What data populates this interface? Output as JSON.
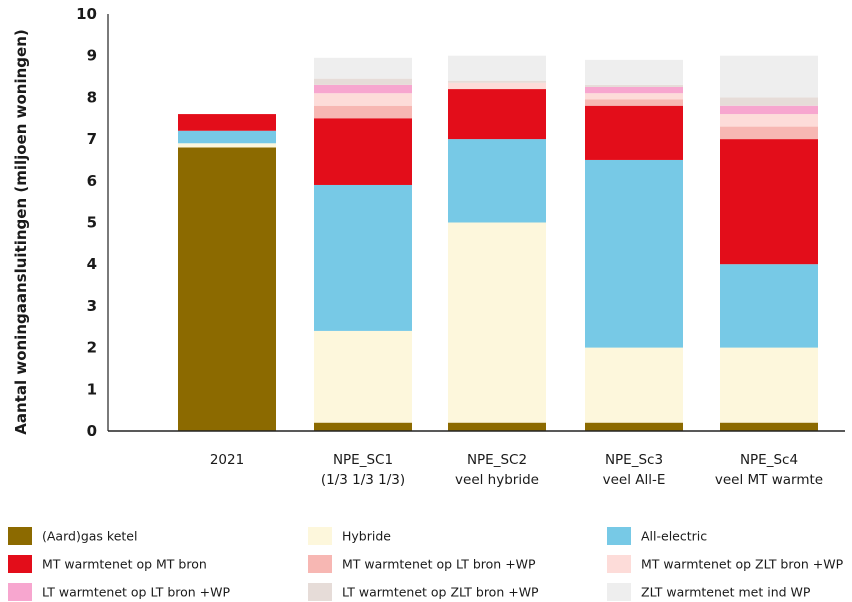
{
  "chart_data": {
    "type": "bar",
    "stacked": true,
    "ylabel": "Aantal woningaansluitingen (miljoen woningen)",
    "ylim": [
      0,
      10
    ],
    "yticks": [
      "0",
      "1",
      "2",
      "3",
      "4",
      "5",
      "6",
      "7",
      "8",
      "9",
      "10"
    ],
    "categories": [
      {
        "line1": "2021",
        "line2": ""
      },
      {
        "line1": "NPE_SC1",
        "line2": "(1/3 1/3 1/3)"
      },
      {
        "line1": "NPE_SC2",
        "line2": "veel hybride"
      },
      {
        "line1": "NPE_Sc3",
        "line2": "veel All-E"
      },
      {
        "line1": "NPE_Sc4",
        "line2": "veel MT warmte"
      }
    ],
    "grid": false,
    "legend_position": "bottom",
    "series": [
      {
        "name": "(Aard)gas ketel",
        "color": "#8c6a00",
        "values": [
          6.8,
          0.2,
          0.2,
          0.2,
          0.2
        ]
      },
      {
        "name": "Hybride",
        "color": "#fdf7dc",
        "values": [
          0.1,
          2.2,
          4.8,
          1.8,
          1.8
        ]
      },
      {
        "name": "All-electric",
        "color": "#77c9e6",
        "values": [
          0.3,
          3.5,
          2.0,
          4.5,
          2.0
        ]
      },
      {
        "name": "MT warmtenet op MT bron",
        "color": "#e30d1a",
        "values": [
          0.4,
          1.6,
          1.2,
          1.3,
          3.0
        ]
      },
      {
        "name": "MT warmtenet op LT bron +WP",
        "color": "#f7b7b3",
        "values": [
          0,
          0.3,
          0,
          0.15,
          0.3
        ]
      },
      {
        "name": "MT warmtenet op ZLT bron +WP",
        "color": "#fddcd9",
        "values": [
          0,
          0.3,
          0.15,
          0.15,
          0.3
        ]
      },
      {
        "name": "LT warmtenet op LT bron +WP",
        "color": "#f7a6cf",
        "values": [
          0,
          0.2,
          0,
          0.15,
          0.2
        ]
      },
      {
        "name": "LT warmtenet op ZLT bron +WP",
        "color": "#e6dcd8",
        "values": [
          0,
          0.15,
          0.05,
          0.05,
          0.2
        ]
      },
      {
        "name": "ZLT warmtenet met ind WP",
        "color": "#eeeeee",
        "values": [
          0,
          0.5,
          0.6,
          0.6,
          1.0
        ]
      }
    ]
  }
}
